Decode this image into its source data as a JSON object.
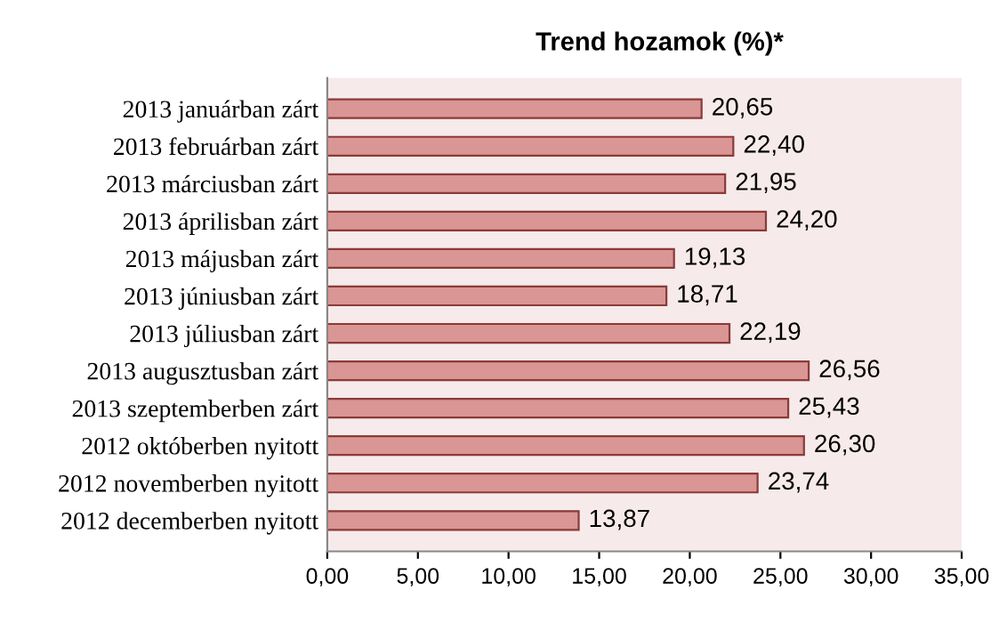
{
  "chart_data": {
    "type": "bar",
    "orientation": "horizontal",
    "title": "Trend hozamok (%)*",
    "categories": [
      "2013 januárban zárt",
      "2013 februárban zárt",
      "2013 márciusban zárt",
      "2013 áprilisban zárt",
      "2013 májusban zárt",
      "2013 júniusban zárt",
      "2013 júliusban zárt",
      "2013 augusztusban zárt",
      "2013 szeptemberben zárt",
      "2012 októberben nyitott",
      "2012 novemberben nyitott",
      "2012 decemberben nyitott"
    ],
    "values": [
      20.65,
      22.4,
      21.95,
      24.2,
      19.13,
      18.71,
      22.19,
      26.56,
      25.43,
      26.3,
      23.74,
      13.87
    ],
    "value_labels": [
      "20,65",
      "22,40",
      "21,95",
      "24,20",
      "19,13",
      "18,71",
      "22,19",
      "26,56",
      "25,43",
      "26,30",
      "23,74",
      "13,87"
    ],
    "color": "#d99694",
    "xlim": [
      0,
      35
    ],
    "xticks": [
      {
        "value": 0,
        "label": "0,00"
      },
      {
        "value": 5,
        "label": "5,00"
      },
      {
        "value": 10,
        "label": "10,00"
      },
      {
        "value": 15,
        "label": "15,00"
      },
      {
        "value": 20,
        "label": "20,00"
      },
      {
        "value": 25,
        "label": "25,00"
      },
      {
        "value": 30,
        "label": "30,00"
      },
      {
        "value": 35,
        "label": "35,00"
      }
    ],
    "grid": false
  }
}
